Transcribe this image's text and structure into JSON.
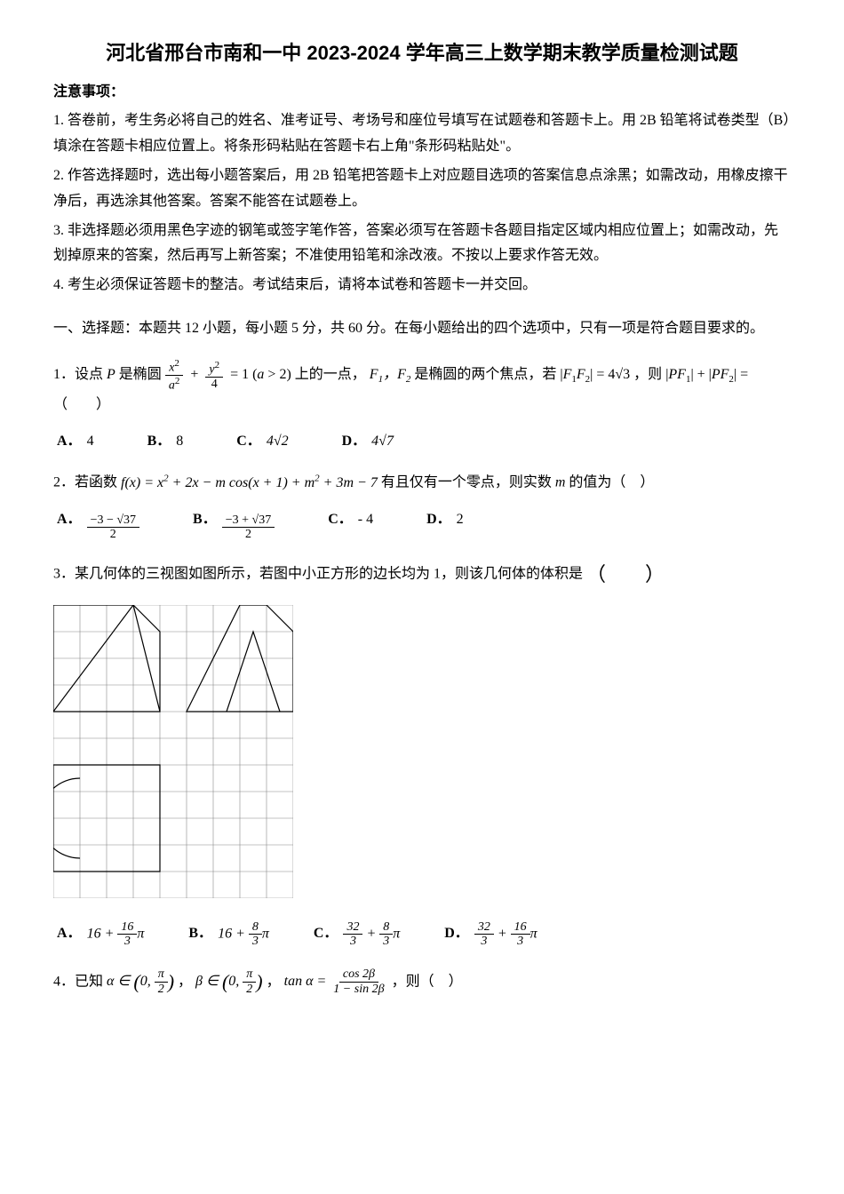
{
  "title": "河北省邢台市南和一中 2023-2024 学年高三上数学期末教学质量检测试题",
  "notice_heading": "注意事项：",
  "instructions": [
    "1. 答卷前，考生务必将自己的姓名、准考证号、考场号和座位号填写在试题卷和答题卡上。用 2B 铅笔将试卷类型（B）填涂在答题卡相应位置上。将条形码粘贴在答题卡右上角\"条形码粘贴处\"。",
    "2. 作答选择题时，选出每小题答案后，用 2B 铅笔把答题卡上对应题目选项的答案信息点涂黑；如需改动，用橡皮擦干净后，再选涂其他答案。答案不能答在试题卷上。",
    "3. 非选择题必须用黑色字迹的钢笔或签字笔作答，答案必须写在答题卡各题目指定区域内相应位置上；如需改动，先划掉原来的答案，然后再写上新答案；不准使用铅笔和涂改液。不按以上要求作答无效。",
    "4. 考生必须保证答题卡的整洁。考试结束后，请将本试卷和答题卡一并交回。"
  ],
  "section1_heading": "一、选择题：本题共 12 小题，每小题 5 分，共 60 分。在每小题给出的四个选项中，只有一项是符合题目要求的。",
  "q1": {
    "prefix": "1．设点",
    "mid1": "是椭圆",
    "mid2": "上的一点，",
    "mid3": "是椭圆的两个焦点，若",
    "mid4": "，则",
    "tail": "（　　）",
    "optA": "4",
    "optB": "8"
  },
  "q2": {
    "prefix": "2．若函数",
    "mid": "有且仅有一个零点，则实数",
    "tail": "的值为（　）",
    "optC": "- 4",
    "optD": "2"
  },
  "q3": {
    "text": "3．某几何体的三视图如图所示，若图中小正方形的边长均为 1，则该几何体的体积是"
  },
  "q4": {
    "prefix": "4．已知",
    "sep": "，",
    "tail": "，则（　）"
  },
  "labels": {
    "A": "A．",
    "B": "B．",
    "C": "C．",
    "D": "D．"
  },
  "grid": {
    "cols": 9,
    "rows": 11,
    "cell": 30,
    "stroke": "#888888",
    "stroke_width": 0.6,
    "line_color": "#000000",
    "line_width": 1.2
  }
}
